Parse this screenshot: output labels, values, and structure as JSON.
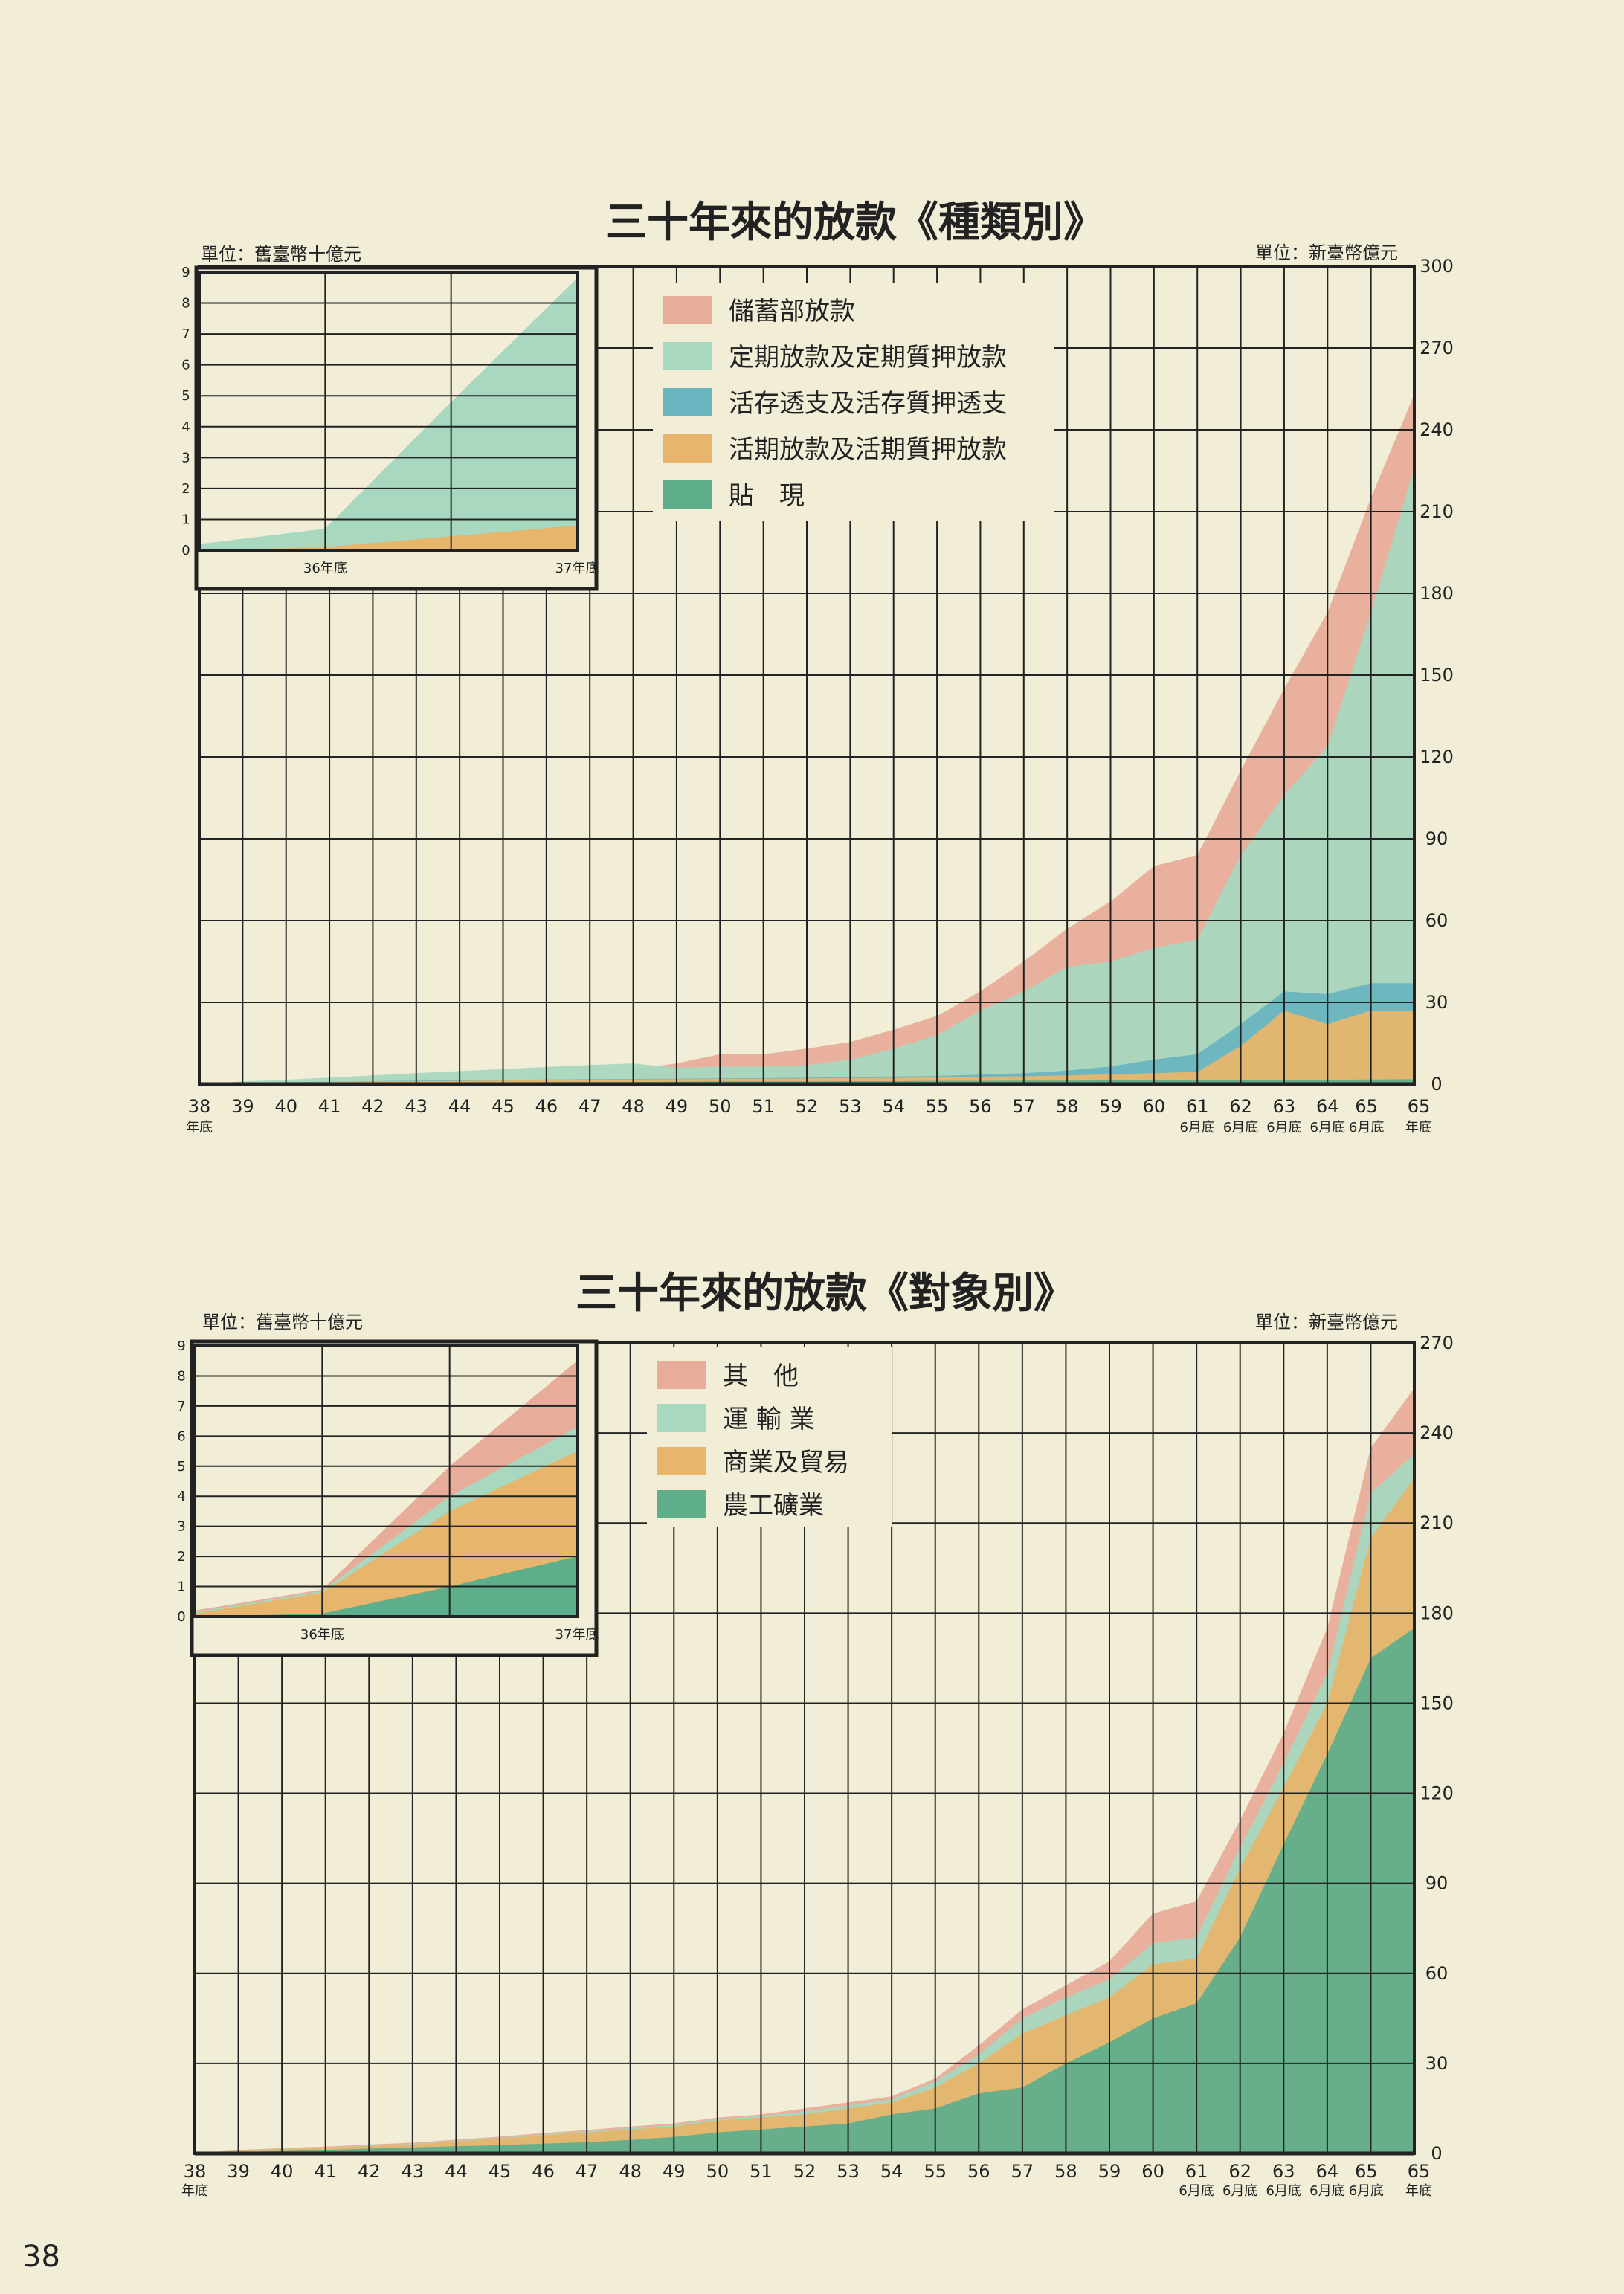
{
  "page_number": "38",
  "colors": {
    "savings": "#e8ad9a",
    "time": "#a8d8bf",
    "overdraft": "#6ab5c0",
    "demand": "#e7b56c",
    "discount": "#5fae8b",
    "other": "#e8ad9a",
    "transport": "#a8d8bf",
    "commerce": "#e7b56c",
    "industry": "#5fae8b",
    "grid": "#222222",
    "background": "#f1edd6"
  },
  "chart_data": [
    {
      "type": "area",
      "title": "三十年來的放款《種類別》",
      "unit_main": "單位：新臺幣億元",
      "unit_inset": "單位：舊臺幣十億元",
      "x_labels": [
        "38",
        "39",
        "40",
        "41",
        "42",
        "43",
        "44",
        "45",
        "46",
        "47",
        "48",
        "49",
        "50",
        "51",
        "52",
        "53",
        "54",
        "55",
        "56",
        "57",
        "58",
        "59",
        "60",
        "61",
        "62",
        "63",
        "64",
        "65",
        "65"
      ],
      "x_sublabels": [
        "年底",
        "",
        "",
        "",
        "",
        "",
        "",
        "",
        "",
        "",
        "",
        "",
        "",
        "",
        "",
        "",
        "",
        "",
        "",
        "",
        "",
        "",
        "",
        "6月底",
        "6月底",
        "6月底",
        "6月底",
        "6月底",
        "年底"
      ],
      "y_ticks": [
        "0",
        "30",
        "60",
        "90",
        "120",
        "150",
        "180",
        "210",
        "240",
        "270",
        "300"
      ],
      "ylim": [
        0,
        300
      ],
      "legend": [
        {
          "name": "儲蓄部放款",
          "color": "savings"
        },
        {
          "name": "定期放款及定期質押放款",
          "color": "time"
        },
        {
          "name": "活存透支及活存質押透支",
          "color": "overdraft"
        },
        {
          "name": "活期放款及活期質押放款",
          "color": "demand"
        },
        {
          "name": "貼　現",
          "color": "discount"
        }
      ],
      "series_cumulative": [
        {
          "name": "貼　現",
          "color": "discount",
          "values": [
            0,
            0.2,
            0.3,
            0.4,
            0.5,
            0.5,
            0.6,
            0.6,
            0.7,
            0.8,
            0.8,
            0.9,
            1,
            1,
            1,
            1.1,
            1.1,
            1.2,
            1.2,
            1.3,
            1.3,
            1.4,
            1.4,
            1.5,
            1.5,
            1.6,
            1.6,
            1.7,
            1.8
          ]
        },
        {
          "name": "活期放款及活期質押放款",
          "color": "demand",
          "values": [
            0,
            0.4,
            0.6,
            0.8,
            1,
            1.1,
            1.2,
            1.3,
            1.5,
            1.6,
            1.7,
            1.8,
            1.9,
            2,
            2.1,
            2.2,
            2.3,
            2.5,
            2.7,
            2.9,
            3.2,
            3.6,
            4,
            4.5,
            14,
            27,
            22,
            27,
            27
          ]
        },
        {
          "name": "活存透支及活存質押透支",
          "color": "overdraft",
          "values": [
            0,
            0.5,
            0.7,
            0.9,
            1.1,
            1.3,
            1.4,
            1.5,
            1.7,
            1.8,
            1.9,
            2,
            2.1,
            2.2,
            2.4,
            2.6,
            2.8,
            3,
            3.5,
            4,
            5,
            6.5,
            9,
            11,
            22,
            34,
            33,
            37,
            37
          ]
        },
        {
          "name": "定期放款及定期質押放款",
          "color": "time",
          "values": [
            0,
            1,
            1.6,
            2.4,
            3.2,
            4,
            4.8,
            5.5,
            6.3,
            7,
            7.6,
            6,
            6.4,
            6.4,
            7,
            9,
            13,
            18,
            27,
            34,
            43,
            45,
            50,
            53,
            84,
            106,
            124,
            173,
            226
          ]
        },
        {
          "name": "儲蓄部放款",
          "color": "savings",
          "values": [
            null,
            null,
            null,
            null,
            null,
            null,
            null,
            null,
            null,
            null,
            5.5,
            7.6,
            11,
            11,
            13,
            15.5,
            20,
            25,
            34,
            45,
            57,
            67,
            80,
            84,
            115,
            145,
            173,
            215,
            253
          ]
        }
      ],
      "inset": {
        "x_labels": [
          "36年底",
          "37年底"
        ],
        "y_ticks": [
          "0",
          "1",
          "2",
          "3",
          "4",
          "5",
          "6",
          "7",
          "8",
          "9"
        ],
        "ylim": [
          0,
          9
        ],
        "x_points": [
          0,
          1,
          2,
          3
        ],
        "series_cumulative": [
          {
            "name": "活期放款及活期質押放款",
            "color": "demand",
            "values": [
              0,
              0.1,
              0.45,
              0.8
            ]
          },
          {
            "name": "定期放款及定期質押放款",
            "color": "time",
            "values": [
              0.2,
              0.7,
              4.8,
              8.8
            ]
          }
        ]
      }
    },
    {
      "type": "area",
      "title": "三十年來的放款《對象別》",
      "unit_main": "單位：新臺幣億元",
      "unit_inset": "單位：舊臺幣十億元",
      "x_labels": [
        "38",
        "39",
        "40",
        "41",
        "42",
        "43",
        "44",
        "45",
        "46",
        "47",
        "48",
        "49",
        "50",
        "51",
        "52",
        "53",
        "54",
        "55",
        "56",
        "57",
        "58",
        "59",
        "60",
        "61",
        "62",
        "63",
        "64",
        "65",
        "65"
      ],
      "x_sublabels": [
        "年底",
        "",
        "",
        "",
        "",
        "",
        "",
        "",
        "",
        "",
        "",
        "",
        "",
        "",
        "",
        "",
        "",
        "",
        "",
        "",
        "",
        "",
        "",
        "6月底",
        "6月底",
        "6月底",
        "6月底",
        "6月底",
        "年底"
      ],
      "y_ticks": [
        "0",
        "30",
        "60",
        "90",
        "120",
        "150",
        "180",
        "210",
        "240",
        "270"
      ],
      "ylim": [
        0,
        270
      ],
      "legend": [
        {
          "name": "其　他",
          "color": "other"
        },
        {
          "name": "運 輸 業",
          "color": "transport"
        },
        {
          "name": "商業及貿易",
          "color": "commerce"
        },
        {
          "name": "農工礦業",
          "color": "industry"
        }
      ],
      "series_cumulative": [
        {
          "name": "農工礦業",
          "color": "industry",
          "values": [
            0,
            0.5,
            0.8,
            1.2,
            1.6,
            2,
            2.4,
            2.8,
            3.3,
            3.8,
            4.5,
            5.5,
            7,
            8,
            9,
            10,
            13,
            15,
            20,
            22,
            30,
            37,
            45,
            50,
            72,
            103,
            133,
            165,
            175
          ]
        },
        {
          "name": "商業及貿易",
          "color": "commerce",
          "values": [
            0,
            1,
            1.5,
            2,
            2.5,
            3,
            4,
            5,
            6,
            7,
            8,
            9,
            11,
            12,
            13,
            15,
            17,
            22,
            30,
            40,
            46,
            52,
            63,
            65,
            95,
            122,
            150,
            205,
            225
          ]
        },
        {
          "name": "運 輸 業",
          "color": "transport",
          "values": [
            0,
            1.1,
            1.6,
            2.1,
            2.7,
            3.2,
            4.2,
            5.2,
            6.3,
            7.3,
            8.4,
            9.5,
            11.5,
            12.5,
            14,
            16,
            18,
            24,
            33,
            45,
            52,
            58,
            70,
            72,
            102,
            130,
            160,
            220,
            233
          ]
        },
        {
          "name": "其　他",
          "color": "other",
          "values": [
            0,
            1.2,
            1.8,
            2.3,
            3,
            3.6,
            4.6,
            5.6,
            6.8,
            7.8,
            9,
            10,
            12,
            13,
            15,
            17,
            19,
            25,
            36,
            48,
            56,
            64,
            80,
            84,
            111,
            140,
            175,
            235,
            255
          ]
        }
      ],
      "inset": {
        "x_labels": [
          "36年底",
          "37年底"
        ],
        "y_ticks": [
          "0",
          "1",
          "2",
          "3",
          "4",
          "5",
          "6",
          "7",
          "8",
          "9"
        ],
        "ylim": [
          0,
          9
        ],
        "x_points": [
          0,
          1,
          2,
          3
        ],
        "series_cumulative": [
          {
            "name": "農工礦業",
            "color": "industry",
            "values": [
              0,
              0.1,
              1,
              2
            ]
          },
          {
            "name": "商業及貿易",
            "color": "commerce",
            "values": [
              0.1,
              0.8,
              3.5,
              5.5
            ]
          },
          {
            "name": "運 輸 業",
            "color": "transport",
            "values": [
              0.15,
              0.85,
              4,
              6.3
            ]
          },
          {
            "name": "其　他",
            "color": "other",
            "values": [
              0.2,
              0.9,
              5,
              8.5
            ]
          }
        ]
      }
    }
  ]
}
